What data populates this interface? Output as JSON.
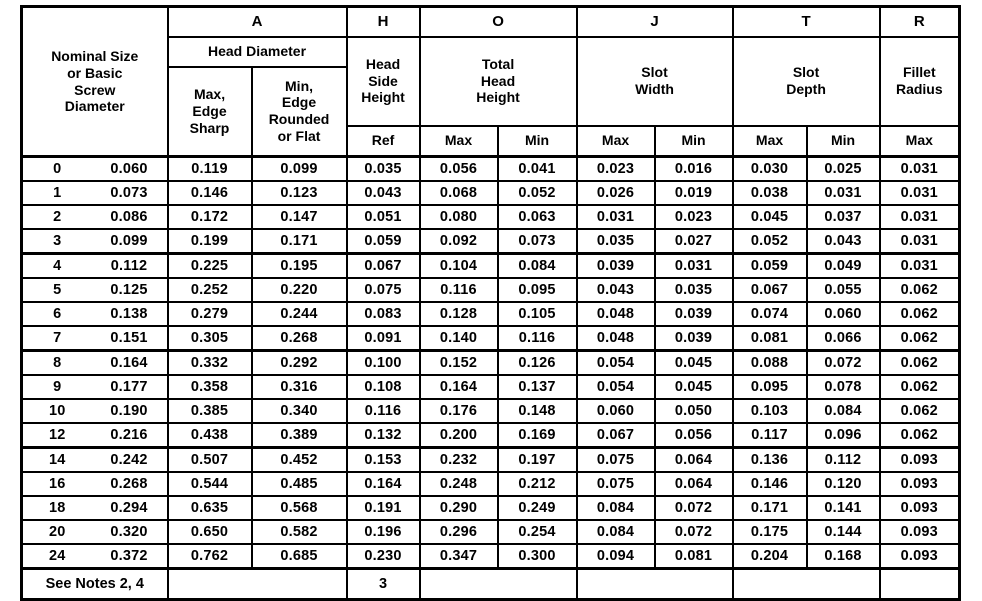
{
  "table": {
    "corner_header": "Nominal Size\nor Basic\nScrew\nDiameter",
    "column_letters": {
      "a": "A",
      "h": "H",
      "o": "O",
      "j": "J",
      "t": "T",
      "r": "R"
    },
    "group_labels": {
      "head_diameter": "Head Diameter",
      "head_side_height": "Head\nSide\nHeight",
      "total_head_height": "Total\nHead\nHeight",
      "slot_width": "Slot\nWidth",
      "slot_depth": "Slot\nDepth",
      "fillet_radius": "Fillet\nRadius"
    },
    "sub_headers": {
      "a_max": "Max,\nEdge\nSharp",
      "a_min": "Min,\nEdge\nRounded\nor Flat",
      "ref": "Ref",
      "max": "Max",
      "min": "Min"
    },
    "row_groups": [
      [
        {
          "size": "0",
          "basic": "0.060",
          "values": [
            "0.119",
            "0.099",
            "0.035",
            "0.056",
            "0.041",
            "0.023",
            "0.016",
            "0.030",
            "0.025",
            "0.031"
          ]
        },
        {
          "size": "1",
          "basic": "0.073",
          "values": [
            "0.146",
            "0.123",
            "0.043",
            "0.068",
            "0.052",
            "0.026",
            "0.019",
            "0.038",
            "0.031",
            "0.031"
          ]
        },
        {
          "size": "2",
          "basic": "0.086",
          "values": [
            "0.172",
            "0.147",
            "0.051",
            "0.080",
            "0.063",
            "0.031",
            "0.023",
            "0.045",
            "0.037",
            "0.031"
          ]
        },
        {
          "size": "3",
          "basic": "0.099",
          "values": [
            "0.199",
            "0.171",
            "0.059",
            "0.092",
            "0.073",
            "0.035",
            "0.027",
            "0.052",
            "0.043",
            "0.031"
          ]
        }
      ],
      [
        {
          "size": "4",
          "basic": "0.112",
          "values": [
            "0.225",
            "0.195",
            "0.067",
            "0.104",
            "0.084",
            "0.039",
            "0.031",
            "0.059",
            "0.049",
            "0.031"
          ]
        },
        {
          "size": "5",
          "basic": "0.125",
          "values": [
            "0.252",
            "0.220",
            "0.075",
            "0.116",
            "0.095",
            "0.043",
            "0.035",
            "0.067",
            "0.055",
            "0.062"
          ]
        },
        {
          "size": "6",
          "basic": "0.138",
          "values": [
            "0.279",
            "0.244",
            "0.083",
            "0.128",
            "0.105",
            "0.048",
            "0.039",
            "0.074",
            "0.060",
            "0.062"
          ]
        },
        {
          "size": "7",
          "basic": "0.151",
          "values": [
            "0.305",
            "0.268",
            "0.091",
            "0.140",
            "0.116",
            "0.048",
            "0.039",
            "0.081",
            "0.066",
            "0.062"
          ]
        }
      ],
      [
        {
          "size": "8",
          "basic": "0.164",
          "values": [
            "0.332",
            "0.292",
            "0.100",
            "0.152",
            "0.126",
            "0.054",
            "0.045",
            "0.088",
            "0.072",
            "0.062"
          ]
        },
        {
          "size": "9",
          "basic": "0.177",
          "values": [
            "0.358",
            "0.316",
            "0.108",
            "0.164",
            "0.137",
            "0.054",
            "0.045",
            "0.095",
            "0.078",
            "0.062"
          ]
        },
        {
          "size": "10",
          "basic": "0.190",
          "values": [
            "0.385",
            "0.340",
            "0.116",
            "0.176",
            "0.148",
            "0.060",
            "0.050",
            "0.103",
            "0.084",
            "0.062"
          ]
        },
        {
          "size": "12",
          "basic": "0.216",
          "values": [
            "0.438",
            "0.389",
            "0.132",
            "0.200",
            "0.169",
            "0.067",
            "0.056",
            "0.117",
            "0.096",
            "0.062"
          ]
        }
      ],
      [
        {
          "size": "14",
          "basic": "0.242",
          "values": [
            "0.507",
            "0.452",
            "0.153",
            "0.232",
            "0.197",
            "0.075",
            "0.064",
            "0.136",
            "0.112",
            "0.093"
          ]
        },
        {
          "size": "16",
          "basic": "0.268",
          "values": [
            "0.544",
            "0.485",
            "0.164",
            "0.248",
            "0.212",
            "0.075",
            "0.064",
            "0.146",
            "0.120",
            "0.093"
          ]
        },
        {
          "size": "18",
          "basic": "0.294",
          "values": [
            "0.635",
            "0.568",
            "0.191",
            "0.290",
            "0.249",
            "0.084",
            "0.072",
            "0.171",
            "0.141",
            "0.093"
          ]
        },
        {
          "size": "20",
          "basic": "0.320",
          "values": [
            "0.650",
            "0.582",
            "0.196",
            "0.296",
            "0.254",
            "0.084",
            "0.072",
            "0.175",
            "0.144",
            "0.093"
          ]
        },
        {
          "size": "24",
          "basic": "0.372",
          "values": [
            "0.762",
            "0.685",
            "0.230",
            "0.347",
            "0.300",
            "0.094",
            "0.081",
            "0.204",
            "0.168",
            "0.093"
          ]
        }
      ]
    ],
    "footer": {
      "note": "See Notes 2, 4",
      "head_side_height_ref": "3"
    },
    "ink_color": "#000000",
    "paper_color": "#ffffff"
  }
}
